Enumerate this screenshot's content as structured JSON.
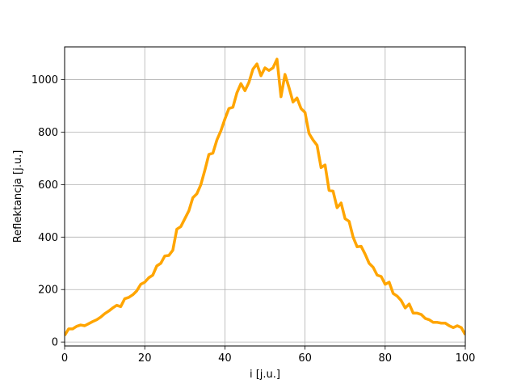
{
  "chart_data": {
    "type": "line",
    "title": "",
    "xlabel": "i [j.u.]",
    "ylabel": "Reflektancja [j.u.]",
    "xlim": [
      0,
      100
    ],
    "ylim": [
      -15,
      1125
    ],
    "xticks": [
      0,
      20,
      40,
      60,
      80,
      100
    ],
    "yticks": [
      0,
      200,
      400,
      600,
      800,
      1000
    ],
    "grid": true,
    "legend": "none",
    "line_color": "#ffa500",
    "series": [
      {
        "x": [
          0,
          1,
          2,
          3,
          4,
          5,
          6,
          7,
          8,
          9,
          10,
          11,
          12,
          13,
          14,
          15,
          16,
          17,
          18,
          19,
          20,
          21,
          22,
          23,
          24,
          25,
          26,
          27,
          28,
          29,
          30,
          31,
          32,
          33,
          34,
          35,
          36,
          37,
          38,
          39,
          40,
          41,
          42,
          43,
          44,
          45,
          46,
          47,
          48,
          49,
          50,
          51,
          52,
          53,
          54,
          55,
          56,
          57,
          58,
          59,
          60,
          61,
          62,
          63,
          64,
          65,
          66,
          67,
          68,
          69,
          70,
          71,
          72,
          73,
          74,
          75,
          76,
          77,
          78,
          79,
          80,
          81,
          82,
          83,
          84,
          85,
          86,
          87,
          88,
          89,
          90,
          91,
          92,
          93,
          94,
          95,
          96,
          97,
          98,
          99,
          100
        ],
        "values": [
          25,
          50,
          50,
          60,
          65,
          62,
          70,
          78,
          85,
          95,
          108,
          118,
          130,
          140,
          135,
          165,
          170,
          180,
          195,
          220,
          228,
          245,
          255,
          290,
          300,
          328,
          330,
          350,
          430,
          440,
          470,
          500,
          550,
          565,
          600,
          655,
          715,
          720,
          770,
          805,
          850,
          890,
          895,
          950,
          985,
          958,
          990,
          1040,
          1060,
          1015,
          1045,
          1035,
          1045,
          1078,
          935,
          1020,
          970,
          915,
          930,
          890,
          875,
          795,
          770,
          750,
          665,
          675,
          578,
          575,
          512,
          530,
          470,
          460,
          400,
          363,
          365,
          335,
          300,
          285,
          255,
          250,
          220,
          228,
          185,
          175,
          158,
          130,
          145,
          110,
          110,
          105,
          90,
          85,
          75,
          75,
          72,
          72,
          62,
          55,
          62,
          55,
          28
        ]
      }
    ]
  }
}
